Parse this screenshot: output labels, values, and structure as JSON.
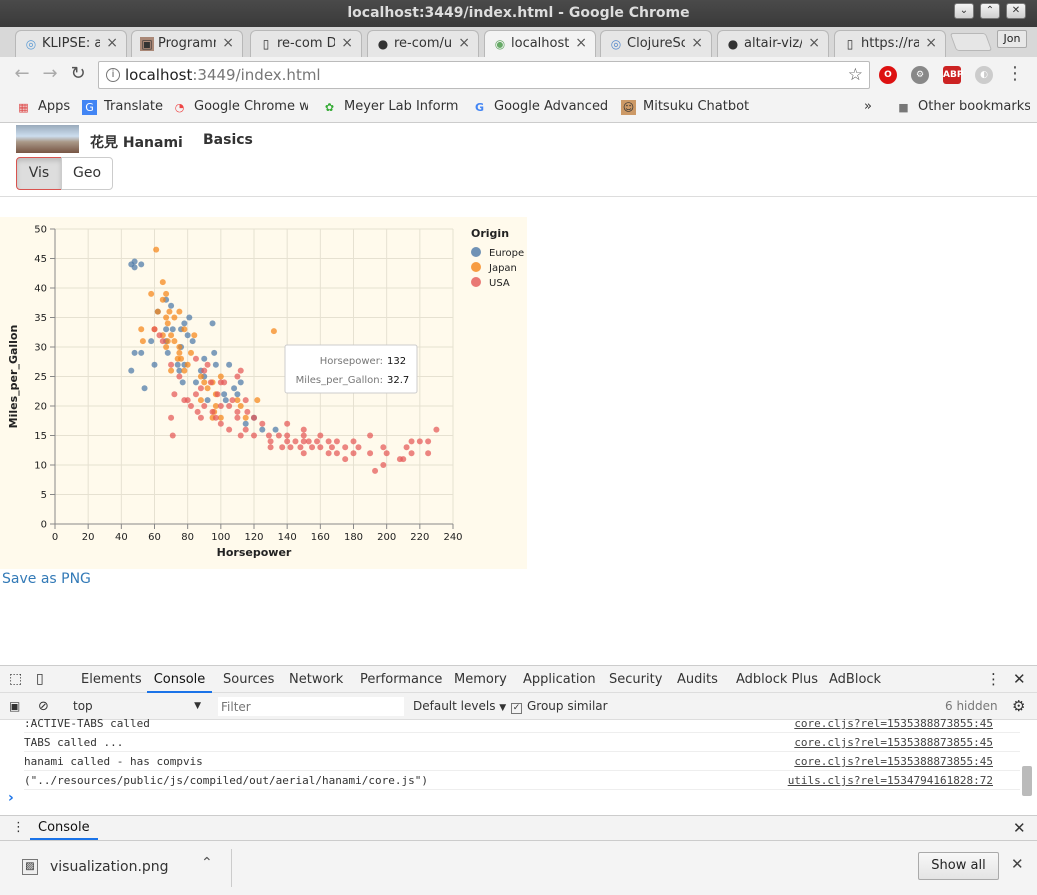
{
  "window": {
    "title": "localhost:3449/index.html - Google Chrome",
    "minimize": "⌄",
    "maximize": "⌃",
    "close": "✕"
  },
  "tabs": [
    {
      "label": "KLIPSE: a",
      "icon": "klipse-icon"
    },
    {
      "label": "Programm",
      "icon": "book-icon"
    },
    {
      "label": "re-com De",
      "icon": "page-icon"
    },
    {
      "label": "re-com/ut",
      "icon": "github-icon"
    },
    {
      "label": "localhost:",
      "icon": "clojure-icon"
    },
    {
      "label": "ClojureSc",
      "icon": "clojure-icon"
    },
    {
      "label": "altair-viz/",
      "icon": "github-icon"
    },
    {
      "label": "https://ra",
      "icon": "page-icon"
    }
  ],
  "profile": "Jon",
  "toolbar": {
    "url_host": "localhost",
    "url_path": ":3449/index.html",
    "ext": [
      "O",
      "⚙",
      "ABP",
      "◐"
    ]
  },
  "bookmarks": [
    {
      "label": "Apps",
      "icon": "apps-icon"
    },
    {
      "label": "Translate",
      "icon": "translate-icon"
    },
    {
      "label": "Google Chrome we",
      "icon": "chrome-icon"
    },
    {
      "label": "Meyer Lab Informa",
      "icon": "lab-icon"
    },
    {
      "label": "Google Advanced S",
      "icon": "google-icon"
    },
    {
      "label": "Mitsuku Chatbot",
      "icon": "chatbot-icon"
    }
  ],
  "bookmarks_more": "»",
  "other_bookmarks": "Other bookmarks",
  "app": {
    "title": "花見 Hanami",
    "basics": "Basics",
    "tab_vis": "Vis",
    "tab_geo": "Geo",
    "save_png": "Save as PNG"
  },
  "chart_data": {
    "type": "scatter",
    "xlabel": "Horsepower",
    "ylabel": "Miles_per_Gallon",
    "xlim": [
      0,
      240
    ],
    "ylim": [
      0,
      50
    ],
    "xticks": [
      0,
      20,
      40,
      60,
      80,
      100,
      120,
      140,
      160,
      180,
      200,
      220,
      240
    ],
    "yticks": [
      0,
      5,
      10,
      15,
      20,
      25,
      30,
      35,
      40,
      45,
      50
    ],
    "grid": true,
    "legend": {
      "title": "Origin",
      "placement": "top-right",
      "entries": [
        {
          "name": "Europe",
          "color": "#4c78a8"
        },
        {
          "name": "Japan",
          "color": "#f58518"
        },
        {
          "name": "USA",
          "color": "#e45756"
        }
      ]
    },
    "series": [
      {
        "name": "Europe",
        "color": "#4c78a8",
        "points": [
          [
            46,
            26
          ],
          [
            46,
            44
          ],
          [
            48,
            43.5
          ],
          [
            48,
            44.5
          ],
          [
            52,
            44
          ],
          [
            48,
            29
          ],
          [
            52,
            29
          ],
          [
            54,
            23
          ],
          [
            58,
            31
          ],
          [
            60,
            27
          ],
          [
            62,
            36
          ],
          [
            67,
            33
          ],
          [
            67,
            31
          ],
          [
            67,
            38
          ],
          [
            68,
            29
          ],
          [
            70,
            37
          ],
          [
            71,
            33
          ],
          [
            74,
            27
          ],
          [
            75,
            26
          ],
          [
            76,
            33
          ],
          [
            76,
            30
          ],
          [
            77,
            24
          ],
          [
            78,
            27
          ],
          [
            78,
            34
          ],
          [
            80,
            32
          ],
          [
            81,
            35
          ],
          [
            83,
            31
          ],
          [
            85,
            24
          ],
          [
            88,
            26
          ],
          [
            90,
            28
          ],
          [
            90,
            25
          ],
          [
            92,
            21
          ],
          [
            95,
            34
          ],
          [
            96,
            29
          ],
          [
            97,
            27
          ],
          [
            102,
            22
          ],
          [
            103,
            21
          ],
          [
            105,
            27
          ],
          [
            108,
            23
          ],
          [
            110,
            22
          ],
          [
            112,
            24
          ],
          [
            115,
            17
          ],
          [
            120,
            18
          ],
          [
            125,
            16
          ],
          [
            133,
            16
          ]
        ]
      },
      {
        "name": "Japan",
        "color": "#f58518",
        "points": [
          [
            52,
            33
          ],
          [
            53,
            31
          ],
          [
            58,
            39
          ],
          [
            60,
            33
          ],
          [
            61,
            46.5
          ],
          [
            62,
            36
          ],
          [
            65,
            32
          ],
          [
            65,
            38
          ],
          [
            65,
            41
          ],
          [
            67,
            30
          ],
          [
            67,
            35
          ],
          [
            67,
            39
          ],
          [
            68,
            34
          ],
          [
            68,
            31
          ],
          [
            69,
            36
          ],
          [
            70,
            32
          ],
          [
            70,
            26
          ],
          [
            72,
            31
          ],
          [
            72,
            35
          ],
          [
            74,
            28
          ],
          [
            75,
            36
          ],
          [
            75,
            29
          ],
          [
            75,
            30
          ],
          [
            76,
            28
          ],
          [
            78,
            33
          ],
          [
            78,
            26
          ],
          [
            80,
            27
          ],
          [
            82,
            29
          ],
          [
            84,
            32
          ],
          [
            88,
            25
          ],
          [
            88,
            21
          ],
          [
            90,
            24
          ],
          [
            92,
            23
          ],
          [
            95,
            24
          ],
          [
            95,
            18
          ],
          [
            96,
            19
          ],
          [
            97,
            22
          ],
          [
            97,
            20
          ],
          [
            100,
            25
          ],
          [
            100,
            18
          ],
          [
            110,
            21
          ],
          [
            112,
            20
          ],
          [
            115,
            18
          ],
          [
            122,
            21
          ],
          [
            132,
            32.7
          ]
        ]
      },
      {
        "name": "USA",
        "color": "#e45756",
        "points": [
          [
            60,
            33
          ],
          [
            63,
            32
          ],
          [
            65,
            31
          ],
          [
            70,
            27
          ],
          [
            70,
            18
          ],
          [
            71,
            15
          ],
          [
            72,
            22
          ],
          [
            75,
            25
          ],
          [
            78,
            21
          ],
          [
            80,
            21
          ],
          [
            82,
            20
          ],
          [
            85,
            22
          ],
          [
            85,
            28
          ],
          [
            86,
            19
          ],
          [
            88,
            18
          ],
          [
            88,
            23
          ],
          [
            90,
            26
          ],
          [
            90,
            20
          ],
          [
            92,
            27
          ],
          [
            94,
            24
          ],
          [
            95,
            19
          ],
          [
            97,
            18
          ],
          [
            98,
            22
          ],
          [
            100,
            17
          ],
          [
            100,
            20
          ],
          [
            100,
            24
          ],
          [
            102,
            24
          ],
          [
            105,
            20
          ],
          [
            105,
            16
          ],
          [
            107,
            21
          ],
          [
            110,
            18
          ],
          [
            110,
            25
          ],
          [
            110,
            19
          ],
          [
            112,
            15
          ],
          [
            112,
            26
          ],
          [
            115,
            16
          ],
          [
            115,
            21
          ],
          [
            116,
            19
          ],
          [
            120,
            18
          ],
          [
            120,
            15
          ],
          [
            125,
            17
          ],
          [
            129,
            15
          ],
          [
            130,
            14
          ],
          [
            130,
            13
          ],
          [
            135,
            15
          ],
          [
            137,
            13
          ],
          [
            140,
            15
          ],
          [
            140,
            17
          ],
          [
            140,
            14
          ],
          [
            142,
            13
          ],
          [
            145,
            14
          ],
          [
            148,
            13
          ],
          [
            150,
            15
          ],
          [
            150,
            14
          ],
          [
            150,
            16
          ],
          [
            150,
            12
          ],
          [
            153,
            14
          ],
          [
            155,
            13
          ],
          [
            158,
            14
          ],
          [
            160,
            15
          ],
          [
            160,
            13
          ],
          [
            165,
            14
          ],
          [
            165,
            12
          ],
          [
            167,
            13
          ],
          [
            170,
            14
          ],
          [
            170,
            12
          ],
          [
            175,
            13
          ],
          [
            175,
            11
          ],
          [
            180,
            12
          ],
          [
            180,
            14
          ],
          [
            183,
            13
          ],
          [
            190,
            12
          ],
          [
            190,
            15
          ],
          [
            193,
            9
          ],
          [
            198,
            10
          ],
          [
            198,
            13
          ],
          [
            200,
            12
          ],
          [
            208,
            11
          ],
          [
            210,
            11
          ],
          [
            212,
            13
          ],
          [
            215,
            14
          ],
          [
            215,
            12
          ],
          [
            220,
            14
          ],
          [
            225,
            14
          ],
          [
            225,
            12
          ],
          [
            230,
            16
          ]
        ]
      }
    ],
    "tooltip": {
      "x_label": "Horsepower:",
      "x_value": "132",
      "y_label": "Miles_per_Gallon:",
      "y_value": "32.7"
    }
  },
  "devtools": {
    "tabs": [
      "Elements",
      "Console",
      "Sources",
      "Network",
      "Performance",
      "Memory",
      "Application",
      "Security",
      "Audits",
      "Adblock Plus",
      "AdBlock"
    ],
    "context": "top",
    "filter_placeholder": "Filter",
    "levels": "Default levels",
    "group_similar": "Group similar",
    "hidden": "6 hidden",
    "logs": [
      {
        "text": ":ACTIVE-TABS  called",
        "src": "core.cljs?rel=1535388873855:45"
      },
      {
        "text": "TABS called ...",
        "src": "core.cljs?rel=1535388873855:45"
      },
      {
        "text": "hanami called - has compvis",
        "src": "core.cljs?rel=1535388873855:45"
      },
      {
        "text": "(\"../resources/public/js/compiled/out/aerial/hanami/core.js\")",
        "src": "utils.cljs?rel=1534794161828:72"
      }
    ],
    "prompt": "›",
    "drawer_tab": "Console"
  },
  "downloads": {
    "file": "visualization.png",
    "show_all": "Show all"
  }
}
